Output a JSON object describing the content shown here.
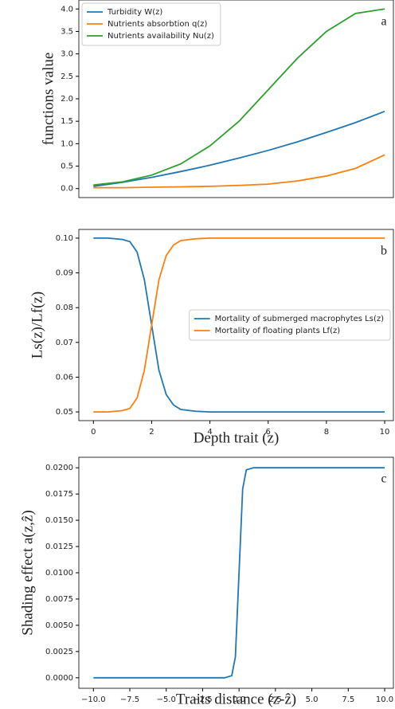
{
  "chart_data": [
    {
      "type": "line",
      "ylabel": "functions value",
      "annotation": "a",
      "legend": "upper left",
      "x": [
        0,
        1,
        2,
        3,
        4,
        5,
        6,
        7,
        8,
        9,
        10
      ],
      "series": [
        {
          "name": "Turbidity W(z)",
          "color": "#1f77b4",
          "values": [
            0.05,
            0.14,
            0.25,
            0.38,
            0.52,
            0.68,
            0.85,
            1.04,
            1.25,
            1.47,
            1.72
          ]
        },
        {
          "name": "Nutrients absorbtion q(z)",
          "color": "#ff7f0e",
          "values": [
            0.02,
            0.02,
            0.03,
            0.04,
            0.05,
            0.07,
            0.1,
            0.17,
            0.28,
            0.45,
            0.75
          ]
        },
        {
          "name": "Nutrients availability Nu(z)",
          "color": "#2ca02c",
          "values": [
            0.08,
            0.15,
            0.3,
            0.55,
            0.95,
            1.5,
            2.2,
            2.9,
            3.5,
            3.9,
            4.0
          ]
        }
      ],
      "xlim": [
        -0.5,
        10.3
      ],
      "ylim": [
        -0.2,
        4.2
      ],
      "yticks": [
        {
          "value": 0,
          "label": "0.0"
        },
        0.5,
        {
          "value": 1,
          "label": "1.0"
        },
        1.5,
        {
          "value": 2,
          "label": "2.0"
        },
        2.5,
        {
          "value": 3,
          "label": "3.0"
        },
        3.5,
        {
          "value": 4,
          "label": "4.0"
        }
      ]
    },
    {
      "type": "line",
      "ylabel": "Ls(z)/Lf(z)",
      "xlabel": "Depth trait (z)",
      "annotation": "b",
      "legend": "center right",
      "x": [
        0,
        0.5,
        1,
        1.25,
        1.5,
        1.75,
        2,
        2.25,
        2.5,
        2.75,
        3,
        3.5,
        4,
        5,
        6,
        7,
        8,
        9,
        10
      ],
      "series": [
        {
          "name": "Mortality of submerged macrophytes Ls(z)",
          "color": "#1f77b4",
          "values": [
            0.1,
            0.1,
            0.0996,
            0.099,
            0.096,
            0.088,
            0.075,
            0.062,
            0.055,
            0.052,
            0.0507,
            0.0502,
            0.05,
            0.05,
            0.05,
            0.05,
            0.05,
            0.05,
            0.05
          ]
        },
        {
          "name": "Mortality of floating plants Lf(z)",
          "color": "#ff7f0e",
          "values": [
            0.05,
            0.05,
            0.0504,
            0.051,
            0.054,
            0.062,
            0.075,
            0.088,
            0.095,
            0.098,
            0.0993,
            0.0998,
            0.1,
            0.1,
            0.1,
            0.1,
            0.1,
            0.1,
            0.1
          ]
        }
      ],
      "xlim": [
        -0.5,
        10.3
      ],
      "ylim": [
        0.0475,
        0.1025
      ],
      "xticks": [
        0,
        2,
        4,
        6,
        8,
        10
      ],
      "yticks": [
        0.05,
        0.06,
        0.07,
        0.08,
        0.09,
        {
          "value": 0.1,
          "label": "0.10"
        }
      ]
    },
    {
      "type": "line",
      "ylabel": "Shading effect a(z,ẑ)",
      "xlabel": "Traits distance (z-ẑ)",
      "annotation": "c",
      "x": [
        -10,
        -1,
        -0.5,
        -0.25,
        0,
        0.25,
        0.5,
        1,
        10
      ],
      "series": [
        {
          "color": "#1f77b4",
          "values": [
            0,
            0,
            0.0002,
            0.002,
            0.01,
            0.018,
            0.0198,
            0.02,
            0.02
          ]
        }
      ],
      "xlim": [
        -11,
        10.6
      ],
      "ylim": [
        -0.001,
        0.021
      ],
      "xticks": [
        {
          "value": -10,
          "label": "−10.0"
        },
        {
          "value": -7.5,
          "label": "−7.5"
        },
        {
          "value": -5,
          "label": "−5.0"
        },
        {
          "value": -2.5,
          "label": "−2.5"
        },
        {
          "value": 0,
          "label": "0.0"
        },
        2.5,
        {
          "value": 5,
          "label": "5.0"
        },
        7.5,
        {
          "value": 10,
          "label": "10.0"
        }
      ],
      "yticks": [
        {
          "value": 0,
          "label": "0.0000"
        },
        0.0025,
        {
          "value": 0.005,
          "label": "0.0050"
        },
        0.0075,
        {
          "value": 0.01,
          "label": "0.0100"
        },
        0.0125,
        {
          "value": 0.015,
          "label": "0.0150"
        },
        0.0175,
        {
          "value": 0.02,
          "label": "0.0200"
        }
      ]
    }
  ]
}
